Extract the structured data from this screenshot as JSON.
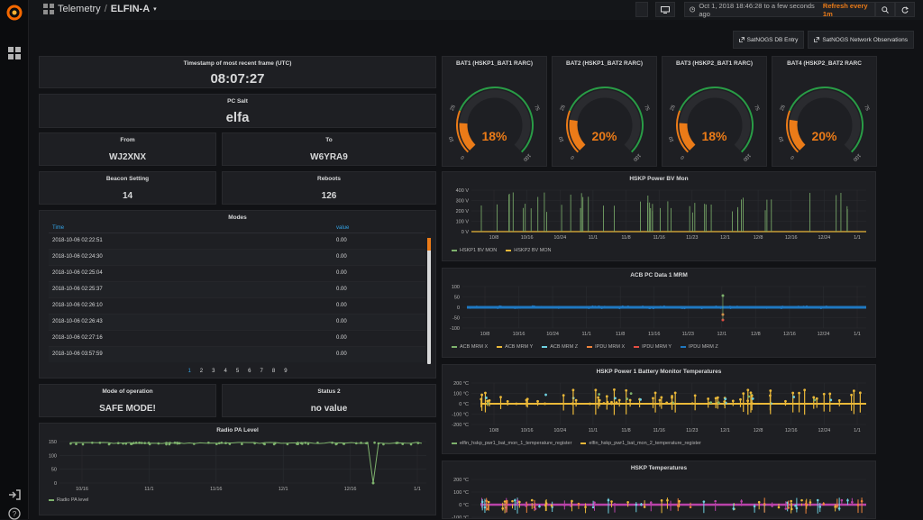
{
  "header": {
    "section": "Telemetry",
    "separator": "/",
    "dashboard": "ELFIN-A",
    "time_range": "Oct 1, 2018 18:46:28 to a few seconds ago",
    "refresh": "Refresh every 1m"
  },
  "links": [
    {
      "label": "SatNOGS DB Entry"
    },
    {
      "label": "SatNOGS Network Observations"
    }
  ],
  "stats": {
    "timestamp": {
      "title": "Timestamp of most recent frame (UTC)",
      "value": "08:07:27"
    },
    "pc_salt": {
      "title": "PC Salt",
      "value": "elfa"
    },
    "from": {
      "title": "From",
      "value": "WJ2XNX"
    },
    "to": {
      "title": "To",
      "value": "W6YRA9"
    },
    "beacon": {
      "title": "Beacon Setting",
      "value": "14"
    },
    "reboots": {
      "title": "Reboots",
      "value": "126"
    },
    "mode": {
      "title": "Mode of operation",
      "value": "SAFE MODE!"
    },
    "status2": {
      "title": "Status 2",
      "value": "no value"
    }
  },
  "modes": {
    "title": "Modes",
    "col_time": "Time",
    "col_value": "value",
    "rows": [
      {
        "time": "2018-10-06 02:22:51",
        "value": "0.00"
      },
      {
        "time": "2018-10-06 02:24:30",
        "value": "0.00"
      },
      {
        "time": "2018-10-06 02:25:04",
        "value": "0.00"
      },
      {
        "time": "2018-10-06 02:25:37",
        "value": "0.00"
      },
      {
        "time": "2018-10-06 02:26:10",
        "value": "0.00"
      },
      {
        "time": "2018-10-06 02:26:43",
        "value": "0.00"
      },
      {
        "time": "2018-10-06 02:27:16",
        "value": "0.00"
      },
      {
        "time": "2018-10-06 03:57:59",
        "value": "0.00"
      }
    ],
    "pages": [
      "1",
      "2",
      "3",
      "4",
      "5",
      "6",
      "7",
      "8",
      "9"
    ]
  },
  "gauges": [
    {
      "title": "BAT1 (HSKP1_BAT1 RARC)",
      "value": 18,
      "label": "18%"
    },
    {
      "title": "BAT2 (HSKP1_BAT2 RARC)",
      "value": 20,
      "label": "20%"
    },
    {
      "title": "BAT3 (HSKP2_BAT1 RARC)",
      "value": 18,
      "label": "18%"
    },
    {
      "title": "BAT4 (HSKP2_BAT2 RARC",
      "value": 20,
      "label": "20%"
    }
  ],
  "gauge_ticks": [
    "0",
    "10",
    "25",
    "75",
    "100"
  ],
  "colors": {
    "green": "#7eb26d",
    "yellow": "#eab839",
    "cyan": "#6ed0e0",
    "orange": "#ef843c",
    "red": "#e24d42",
    "blue": "#1f78c1",
    "purple": "#ba43a9",
    "gauge": "#eb7b18",
    "gauge_ok": "#299c46"
  },
  "chart_data": [
    {
      "type": "line",
      "title": "HSKP Power BV Mon",
      "y_ticks": [
        "400 V",
        "300 V",
        "200 V",
        "100 V",
        "0 V"
      ],
      "ylim": [
        0,
        400
      ],
      "x_ticks": [
        "10/8",
        "10/16",
        "10/24",
        "11/1",
        "11/8",
        "11/16",
        "11/23",
        "12/1",
        "12/8",
        "12/16",
        "12/24",
        "1/1"
      ],
      "series": [
        {
          "name": "HSKP1 BV MON"
        },
        {
          "name": "HSKP2 BV MON"
        }
      ]
    },
    {
      "type": "scatter",
      "title": "ACB PC Data 1 MRM",
      "y_ticks": [
        "100",
        "50",
        "0",
        "-50",
        "-100"
      ],
      "ylim": [
        -100,
        100
      ],
      "x_ticks": [
        "10/8",
        "10/16",
        "10/24",
        "11/1",
        "11/8",
        "11/16",
        "11/23",
        "12/1",
        "12/8",
        "12/16",
        "12/24",
        "1/1"
      ],
      "series": [
        {
          "name": "ACB MRM X"
        },
        {
          "name": "ACB MRM Y"
        },
        {
          "name": "ACB MRM Z"
        },
        {
          "name": "IPDU MRM X"
        },
        {
          "name": "IPDU MRM Y"
        },
        {
          "name": "IPDU MRM Z"
        }
      ]
    },
    {
      "type": "scatter",
      "title": "HSKP Power 1 Battery Monitor Temperatures",
      "y_ticks": [
        "200 °C",
        "100 °C",
        "0 °C",
        "-100 °C",
        "-200 °C"
      ],
      "ylim": [
        -200,
        200
      ],
      "x_ticks": [
        "10/8",
        "10/16",
        "10/24",
        "11/1",
        "11/8",
        "11/16",
        "11/23",
        "12/1",
        "12/8",
        "12/16",
        "12/24",
        "1/1"
      ],
      "series": [
        {
          "name": "elfin_hskp_pwr1_bat_mon_1_temperature_register"
        },
        {
          "name": "elfin_hskp_pwr1_bat_mon_2_temperature_register"
        }
      ]
    },
    {
      "type": "scatter",
      "title": "HSKP Temperatures",
      "y_ticks": [
        "200 °C",
        "100 °C",
        "0 °C",
        "-100 °C"
      ],
      "ylim": [
        -100,
        200
      ],
      "x_ticks": [],
      "series": []
    },
    {
      "type": "line",
      "title": "Radio PA Level",
      "y_ticks": [
        "150",
        "100",
        "50",
        "0"
      ],
      "ylim": [
        0,
        150
      ],
      "x_ticks": [
        "10/16",
        "11/1",
        "11/16",
        "12/1",
        "12/16",
        "1/1"
      ],
      "series": [
        {
          "name": "Radio PA level"
        }
      ]
    }
  ]
}
